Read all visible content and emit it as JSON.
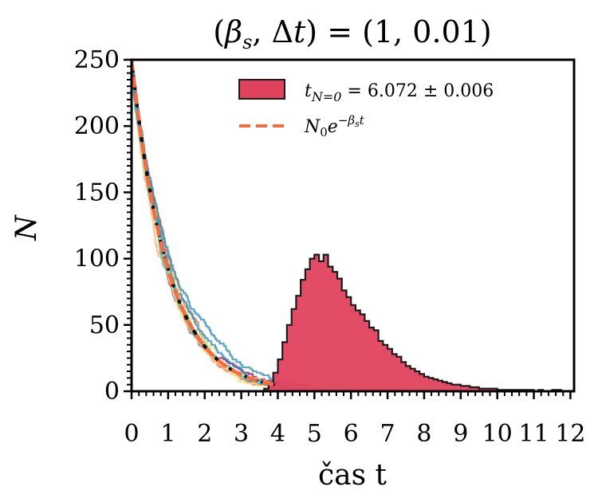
{
  "chart_data": {
    "type": "histogram+line",
    "title": "(β_s, Δt) = (1, 0.01)",
    "xlabel": "čas t",
    "ylabel": "N",
    "xlim": [
      0,
      12.1
    ],
    "ylim": [
      0,
      250
    ],
    "xticks": [
      0,
      1,
      2,
      3,
      4,
      5,
      6,
      7,
      8,
      9,
      10,
      11,
      12
    ],
    "yticks": [
      0,
      50,
      100,
      150,
      200,
      250
    ],
    "legend": {
      "position": "top-right",
      "entries": [
        {
          "label": "t_{N=0} = 6.072 ± 0.006",
          "kind": "patch",
          "color": "#e0425e"
        },
        {
          "label": "N_0 e^{-β_s t}",
          "kind": "dashed-line",
          "color": "#f46d43"
        }
      ]
    },
    "model": {
      "N0": 250,
      "beta_s": 1
    },
    "histogram": {
      "color": "#e0425e",
      "edge_color": "#1a1a1a",
      "bin_width": 0.125,
      "start": 3.5,
      "counts": [
        0,
        2,
        6,
        14,
        24,
        37,
        50,
        62,
        72,
        84,
        92,
        100,
        103,
        98,
        103,
        94,
        90,
        85,
        76,
        71,
        65,
        61,
        58,
        53,
        48,
        46,
        38,
        35,
        32,
        28,
        26,
        22,
        19,
        17,
        15,
        13,
        11,
        10,
        9,
        8,
        7,
        6,
        5,
        5,
        4,
        4,
        3,
        3,
        2,
        2,
        2,
        2,
        1,
        1,
        1,
        1,
        1,
        1,
        1,
        1,
        0,
        1,
        0,
        0,
        1,
        1,
        0
      ]
    },
    "trajectories": {
      "count": 10,
      "colors": [
        "#9e0142",
        "#d53e4f",
        "#f46d43",
        "#fdae61",
        "#fee08b",
        "#e6f598",
        "#abdda4",
        "#66c2a5",
        "#3288bd",
        "#2f8bab"
      ]
    },
    "expectation_line_color": "#111111"
  }
}
